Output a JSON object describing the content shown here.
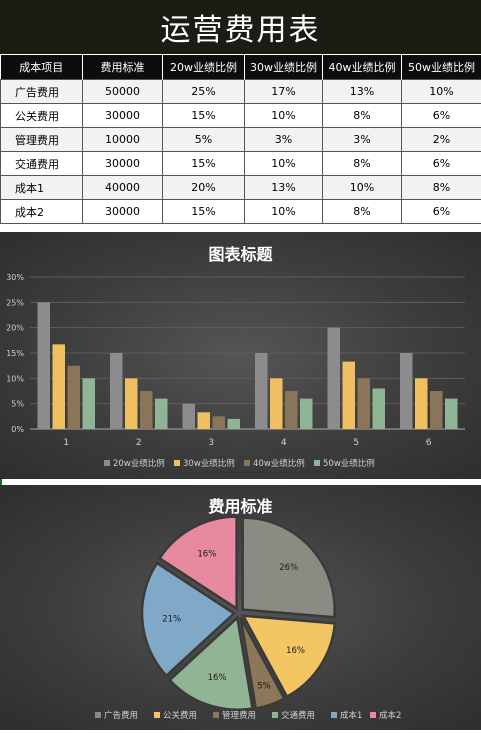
{
  "page": {
    "title": "运营费用表"
  },
  "table": {
    "headers": [
      "成本项目",
      "费用标准",
      "20w业绩比例",
      "30w业绩比例",
      "40w业绩比例",
      "50w业绩比例"
    ],
    "rows": [
      [
        "广告费用",
        "50000",
        "25%",
        "17%",
        "13%",
        "10%"
      ],
      [
        "公关费用",
        "30000",
        "15%",
        "10%",
        "8%",
        "6%"
      ],
      [
        "管理费用",
        "10000",
        "5%",
        "3%",
        "3%",
        "2%"
      ],
      [
        "交通费用",
        "30000",
        "15%",
        "10%",
        "8%",
        "6%"
      ],
      [
        "成本1",
        "40000",
        "20%",
        "13%",
        "10%",
        "8%"
      ],
      [
        "成本2",
        "30000",
        "15%",
        "10%",
        "8%",
        "6%"
      ]
    ]
  },
  "chart_data": [
    {
      "type": "bar",
      "title": "图表标题",
      "categories": [
        "1",
        "2",
        "3",
        "4",
        "5",
        "6"
      ],
      "y_ticks": [
        "0%",
        "5%",
        "10%",
        "15%",
        "20%",
        "25%",
        "30%"
      ],
      "ylim": [
        0,
        30
      ],
      "grid": true,
      "legend_position": "bottom",
      "series": [
        {
          "name": "20w业绩比例",
          "color": "#8c8c8c",
          "values": [
            25,
            15,
            5,
            15,
            20,
            15
          ]
        },
        {
          "name": "30w业绩比例",
          "color": "#f0c060",
          "values": [
            16.7,
            10,
            3.3,
            10,
            13.3,
            10
          ]
        },
        {
          "name": "40w业绩比例",
          "color": "#8a7558",
          "values": [
            12.5,
            7.5,
            2.5,
            7.5,
            10,
            7.5
          ]
        },
        {
          "name": "50w业绩比例",
          "color": "#8fb496",
          "values": [
            10,
            6,
            2,
            6,
            8,
            6
          ]
        }
      ]
    },
    {
      "type": "pie",
      "title": "费用标准",
      "legend_position": "bottom",
      "categories": [
        "广告费用",
        "公关费用",
        "管理费用",
        "交通费用",
        "成本1",
        "成本2"
      ],
      "values": [
        50000,
        30000,
        10000,
        30000,
        40000,
        30000
      ],
      "labels": [
        "26%",
        "16%",
        "5%",
        "16%",
        "21%",
        "16%"
      ],
      "colors": [
        "#8b8b83",
        "#f3c563",
        "#8c7758",
        "#90b494",
        "#7fa9c7",
        "#e88a9f"
      ]
    }
  ]
}
